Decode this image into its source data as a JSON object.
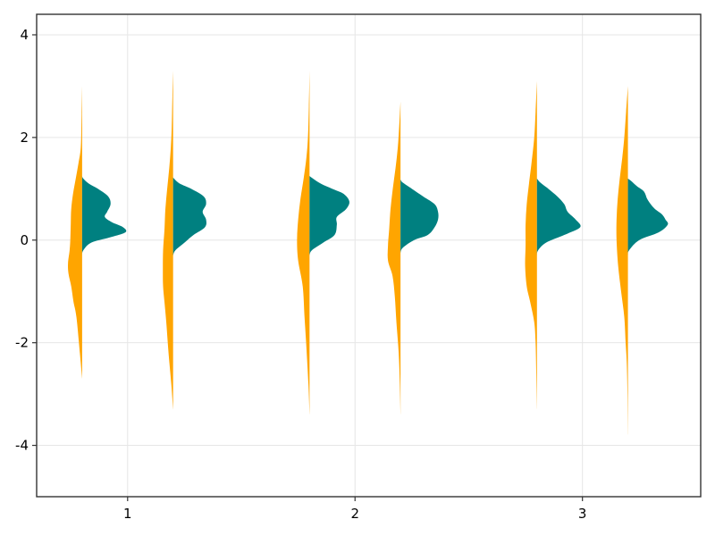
{
  "chart_data": {
    "type": "violin",
    "title": "",
    "xlabel": "",
    "ylabel": "",
    "xlim": [
      0.6,
      3.52
    ],
    "ylim": [
      -5,
      4.4
    ],
    "x_ticks": [
      1,
      2,
      3
    ],
    "y_ticks": [
      -4,
      -2,
      0,
      2,
      4
    ],
    "grid": true,
    "colors": {
      "left": "#FFA500",
      "right": "#008080"
    },
    "violins": [
      {
        "x": 0.8,
        "left": {
          "profile": [
            [
              -2.7,
              0
            ],
            [
              -2.2,
              0.01
            ],
            [
              -1.5,
              0.025
            ],
            [
              -1.2,
              0.038
            ],
            [
              -0.9,
              0.048
            ],
            [
              -0.65,
              0.06
            ],
            [
              -0.45,
              0.062
            ],
            [
              -0.2,
              0.055
            ],
            [
              0,
              0.052
            ],
            [
              0.3,
              0.05
            ],
            [
              0.6,
              0.048
            ],
            [
              0.9,
              0.04
            ],
            [
              1.2,
              0.028
            ],
            [
              1.5,
              0.016
            ],
            [
              1.8,
              0.006
            ],
            [
              2.3,
              0.003
            ],
            [
              3.0,
              0
            ]
          ]
        },
        "right": {
          "profile": [
            [
              -0.3,
              0
            ],
            [
              -0.2,
              0.005
            ],
            [
              -0.05,
              0.04
            ],
            [
              0.05,
              0.12
            ],
            [
              0.15,
              0.19
            ],
            [
              0.25,
              0.18
            ],
            [
              0.35,
              0.13
            ],
            [
              0.45,
              0.1
            ],
            [
              0.55,
              0.11
            ],
            [
              0.7,
              0.125
            ],
            [
              0.85,
              0.115
            ],
            [
              1.0,
              0.07
            ],
            [
              1.1,
              0.03
            ],
            [
              1.2,
              0.005
            ],
            [
              1.25,
              0
            ]
          ]
        }
      },
      {
        "x": 1.2,
        "left": {
          "profile": [
            [
              -3.3,
              0
            ],
            [
              -2.8,
              0.008
            ],
            [
              -2.2,
              0.02
            ],
            [
              -1.6,
              0.03
            ],
            [
              -1.2,
              0.038
            ],
            [
              -0.9,
              0.044
            ],
            [
              -0.6,
              0.045
            ],
            [
              -0.2,
              0.044
            ],
            [
              0.2,
              0.038
            ],
            [
              0.6,
              0.034
            ],
            [
              1.0,
              0.026
            ],
            [
              1.4,
              0.017
            ],
            [
              1.8,
              0.01
            ],
            [
              2.2,
              0.006
            ],
            [
              2.8,
              0.003
            ],
            [
              3.3,
              0
            ]
          ]
        },
        "right": {
          "profile": [
            [
              -0.3,
              0
            ],
            [
              -0.2,
              0.01
            ],
            [
              -0.05,
              0.05
            ],
            [
              0.1,
              0.09
            ],
            [
              0.25,
              0.14
            ],
            [
              0.4,
              0.145
            ],
            [
              0.55,
              0.13
            ],
            [
              0.7,
              0.145
            ],
            [
              0.85,
              0.135
            ],
            [
              1.0,
              0.08
            ],
            [
              1.1,
              0.03
            ],
            [
              1.18,
              0.008
            ],
            [
              1.22,
              0
            ]
          ]
        }
      },
      {
        "x": 1.8,
        "left": {
          "profile": [
            [
              -3.4,
              0
            ],
            [
              -2.8,
              0.005
            ],
            [
              -2.0,
              0.015
            ],
            [
              -1.5,
              0.022
            ],
            [
              -0.9,
              0.03
            ],
            [
              -0.4,
              0.05
            ],
            [
              0,
              0.055
            ],
            [
              0.4,
              0.05
            ],
            [
              0.8,
              0.04
            ],
            [
              1.2,
              0.026
            ],
            [
              1.6,
              0.014
            ],
            [
              2.0,
              0.007
            ],
            [
              2.6,
              0.003
            ],
            [
              3.3,
              0
            ]
          ]
        },
        "right": {
          "profile": [
            [
              -0.3,
              0
            ],
            [
              -0.2,
              0.01
            ],
            [
              -0.05,
              0.06
            ],
            [
              0.1,
              0.11
            ],
            [
              0.3,
              0.12
            ],
            [
              0.45,
              0.12
            ],
            [
              0.6,
              0.16
            ],
            [
              0.75,
              0.175
            ],
            [
              0.9,
              0.15
            ],
            [
              1.0,
              0.1
            ],
            [
              1.1,
              0.05
            ],
            [
              1.2,
              0.015
            ],
            [
              1.25,
              0
            ]
          ]
        }
      },
      {
        "x": 2.2,
        "left": {
          "profile": [
            [
              -3.4,
              0
            ],
            [
              -2.8,
              0.003
            ],
            [
              -2.2,
              0.008
            ],
            [
              -1.6,
              0.018
            ],
            [
              -1.1,
              0.025
            ],
            [
              -0.7,
              0.035
            ],
            [
              -0.4,
              0.055
            ],
            [
              -0.1,
              0.055
            ],
            [
              0.2,
              0.05
            ],
            [
              0.6,
              0.044
            ],
            [
              1.0,
              0.034
            ],
            [
              1.4,
              0.022
            ],
            [
              1.8,
              0.012
            ],
            [
              2.2,
              0.006
            ],
            [
              2.7,
              0
            ]
          ]
        },
        "right": {
          "profile": [
            [
              -0.25,
              0
            ],
            [
              -0.15,
              0.01
            ],
            [
              0,
              0.06
            ],
            [
              0.1,
              0.12
            ],
            [
              0.25,
              0.15
            ],
            [
              0.4,
              0.165
            ],
            [
              0.55,
              0.165
            ],
            [
              0.7,
              0.15
            ],
            [
              0.85,
              0.1
            ],
            [
              1.0,
              0.05
            ],
            [
              1.12,
              0.01
            ],
            [
              1.18,
              0
            ]
          ]
        }
      },
      {
        "x": 2.8,
        "left": {
          "profile": [
            [
              -3.3,
              0
            ],
            [
              -2.6,
              0.003
            ],
            [
              -2.0,
              0.006
            ],
            [
              -1.6,
              0.012
            ],
            [
              -1.2,
              0.03
            ],
            [
              -0.9,
              0.045
            ],
            [
              -0.5,
              0.052
            ],
            [
              -0.1,
              0.05
            ],
            [
              0.3,
              0.05
            ],
            [
              0.7,
              0.045
            ],
            [
              1.1,
              0.035
            ],
            [
              1.5,
              0.024
            ],
            [
              2.0,
              0.012
            ],
            [
              2.5,
              0.006
            ],
            [
              3.1,
              0
            ]
          ]
        },
        "right": {
          "profile": [
            [
              -0.3,
              0
            ],
            [
              -0.2,
              0.005
            ],
            [
              -0.05,
              0.04
            ],
            [
              0.1,
              0.12
            ],
            [
              0.25,
              0.19
            ],
            [
              0.4,
              0.17
            ],
            [
              0.55,
              0.135
            ],
            [
              0.7,
              0.12
            ],
            [
              0.85,
              0.09
            ],
            [
              1.0,
              0.05
            ],
            [
              1.12,
              0.015
            ],
            [
              1.2,
              0
            ]
          ]
        }
      },
      {
        "x": 3.2,
        "left": {
          "profile": [
            [
              -3.8,
              0
            ],
            [
              -3.0,
              0.002
            ],
            [
              -2.4,
              0.005
            ],
            [
              -2.0,
              0.01
            ],
            [
              -1.5,
              0.016
            ],
            [
              -1.0,
              0.03
            ],
            [
              -0.5,
              0.043
            ],
            [
              0,
              0.05
            ],
            [
              0.4,
              0.05
            ],
            [
              0.8,
              0.045
            ],
            [
              1.2,
              0.036
            ],
            [
              1.6,
              0.025
            ],
            [
              2.0,
              0.016
            ],
            [
              2.5,
              0.008
            ],
            [
              3.0,
              0
            ]
          ]
        },
        "right": {
          "profile": [
            [
              -0.3,
              0
            ],
            [
              -0.2,
              0.005
            ],
            [
              0,
              0.05
            ],
            [
              0.15,
              0.135
            ],
            [
              0.3,
              0.175
            ],
            [
              0.4,
              0.165
            ],
            [
              0.5,
              0.15
            ],
            [
              0.6,
              0.12
            ],
            [
              0.7,
              0.1
            ],
            [
              0.8,
              0.085
            ],
            [
              0.95,
              0.07
            ],
            [
              1.05,
              0.04
            ],
            [
              1.15,
              0.015
            ],
            [
              1.2,
              0
            ]
          ]
        }
      }
    ]
  }
}
